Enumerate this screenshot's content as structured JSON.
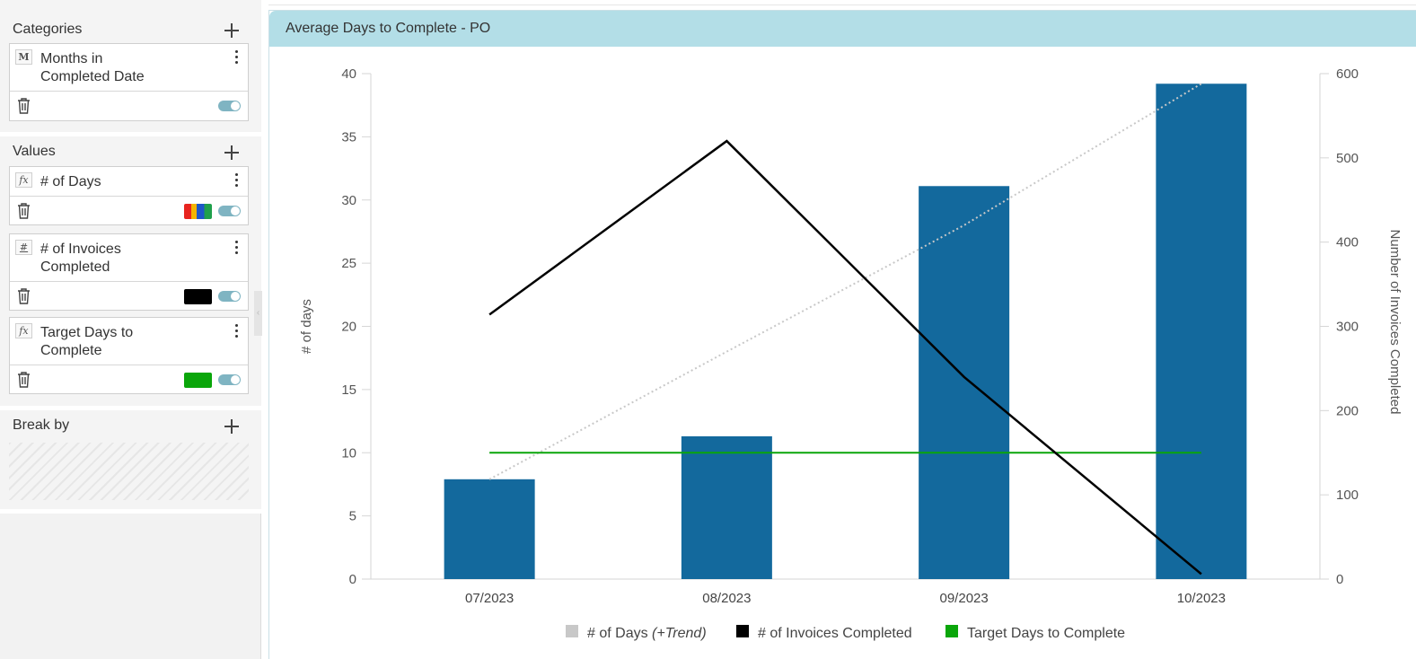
{
  "sidebar": {
    "categories": {
      "header": "Categories",
      "items": [
        {
          "type_icon": "M",
          "label_line1": "Months in",
          "label_line2": "Completed Date"
        }
      ]
    },
    "values": {
      "header": "Values",
      "items": [
        {
          "type_icon": "fx",
          "label_line1": "# of Days",
          "label_line2": "",
          "swatch": "multi"
        },
        {
          "type_icon": "#",
          "label_line1": "# of Invoices",
          "label_line2": "Completed",
          "swatch": "#000000"
        },
        {
          "type_icon": "fx",
          "label_line1": "Target Days to",
          "label_line2": "Complete",
          "swatch": "#0aa60a"
        }
      ]
    },
    "break_by": {
      "header": "Break by"
    }
  },
  "chart_card": {
    "title": "Average Days to Complete - PO"
  },
  "colors": {
    "bar": "#13699d",
    "invoices": "#000000",
    "target": "#0aa60a",
    "trend": "#c8c8c8",
    "header_bg": "#b3dee7"
  },
  "chart_data": {
    "type": "bar",
    "categories": [
      "07/2023",
      "08/2023",
      "09/2023",
      "10/2023"
    ],
    "series": [
      {
        "name": "# of Days",
        "type": "bar",
        "axis": "left",
        "values": [
          7.9,
          11.3,
          31.1,
          39.2
        ]
      },
      {
        "name": "# of Invoices Completed",
        "type": "line",
        "axis": "right",
        "values": [
          314,
          520,
          240,
          6
        ]
      },
      {
        "name": "Target Days to Complete",
        "type": "line",
        "axis": "left",
        "values": [
          10,
          10,
          10,
          10
        ]
      }
    ],
    "trend": {
      "series": "# of Days",
      "values": [
        7.9,
        18.0,
        28.0,
        39.2
      ]
    },
    "ylabel": "# of days",
    "y2label": "Number of Invoices Completed",
    "ylim": [
      0,
      40
    ],
    "yticks": [
      0,
      5,
      10,
      15,
      20,
      25,
      30,
      35,
      40
    ],
    "y2lim": [
      0,
      600
    ],
    "y2ticks": [
      0,
      100,
      200,
      300,
      400,
      500,
      600
    ],
    "legend": [
      {
        "label": "# of Days",
        "suffix": "(+Trend)",
        "color": "#c8c8c8"
      },
      {
        "label": "# of Invoices Completed",
        "suffix": "",
        "color": "#000000"
      },
      {
        "label": "Target Days to Complete",
        "suffix": "",
        "color": "#0aa60a"
      }
    ],
    "legend_position": "bottom",
    "grid": false
  }
}
